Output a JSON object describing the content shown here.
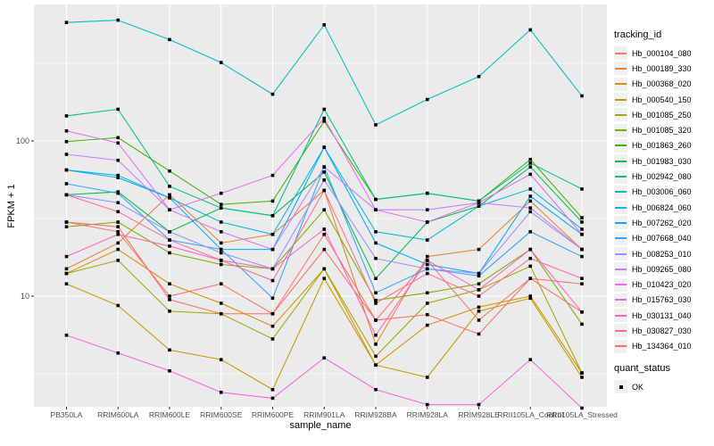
{
  "figure": {
    "x_axis_title": "sample_name",
    "y_axis_title": "FPKM + 1"
  },
  "legend": {
    "tracking_title": "tracking_id",
    "quant_title": "quant_status",
    "quant_items": [
      {
        "label": "OK",
        "marker": "black-square"
      }
    ]
  },
  "colors": {
    "panel_bg": "#EBEBEB",
    "grid": "#FFFFFF",
    "tick_label": "#4D4D4D",
    "tick_mark": "#333333",
    "axis_title": "#000000",
    "point": "#000000",
    "legend_key_bg": "#F0F0F0",
    "page_bg": "#FFFFFF"
  },
  "chart_data": {
    "type": "line",
    "x_type": "categorical",
    "y_scale": "log10",
    "title": "",
    "xlabel": "sample_name",
    "ylabel": "FPKM + 1",
    "grid": true,
    "legend_position": "right",
    "point_marker": "black-square",
    "y_ticks": [
      100,
      10
    ],
    "y_tick_labels": [
      "100",
      "10"
    ],
    "y_minor_gridlines": [
      316.2,
      31.62,
      3.162
    ],
    "ylim": [
      1.9,
      760
    ],
    "categories": [
      "PB350LA",
      "RRIM600LA",
      "RRIM600LE",
      "RRIM600SE",
      "RRIM600PE",
      "RRIM901LA",
      "RRIM928BA",
      "RRIM928LA",
      "RRIM928LE",
      "RRII105LA_Control",
      "RRII105LA_Stressed"
    ],
    "series": [
      {
        "name": "Hb_000104_080",
        "color": "#F8766D",
        "values": [
          30,
          26,
          10,
          12,
          7.7,
          25,
          7,
          17,
          7,
          13,
          12
        ]
      },
      {
        "name": "Hb_000189_330",
        "color": "#EA8331",
        "values": [
          15,
          22,
          45,
          22,
          25,
          48,
          4.9,
          18,
          20,
          41,
          20
        ]
      },
      {
        "name": "Hb_000368_020",
        "color": "#D89000",
        "values": [
          14,
          20,
          12,
          9,
          6.4,
          15,
          3.6,
          6.5,
          8.5,
          10,
          3.2
        ]
      },
      {
        "name": "Hb_000540_150",
        "color": "#C09B00",
        "values": [
          12,
          8.7,
          4.5,
          3.9,
          2.5,
          13,
          3.6,
          3,
          8,
          9.7,
          3
        ]
      },
      {
        "name": "Hb_001085_250",
        "color": "#A3A500",
        "values": [
          14,
          17,
          8,
          7.7,
          5.3,
          15,
          4.1,
          9,
          11,
          15.6,
          3.2
        ]
      },
      {
        "name": "Hb_001085_320",
        "color": "#7CAE00",
        "values": [
          28,
          30,
          19,
          16,
          15,
          36,
          9.4,
          10.5,
          12,
          20,
          6.6
        ]
      },
      {
        "name": "Hb_001863_260",
        "color": "#39B600",
        "values": [
          99,
          105,
          64,
          39,
          41,
          134,
          42,
          46,
          41,
          76,
          32
        ]
      },
      {
        "name": "Hb_001983_030",
        "color": "#00BB4E",
        "values": [
          45,
          47,
          26,
          37,
          33,
          63,
          13,
          30,
          38,
          68,
          30
        ]
      },
      {
        "name": "Hb_002942_080",
        "color": "#00C087",
        "values": [
          145,
          160,
          51,
          37,
          33,
          160,
          42,
          46,
          41,
          72,
          49
        ]
      },
      {
        "name": "Hb_003006_060",
        "color": "#00C0B8",
        "values": [
          580,
          600,
          450,
          320,
          200,
          560,
          127,
          185,
          260,
          520,
          195
        ]
      },
      {
        "name": "Hb_006824_060",
        "color": "#00BAE0",
        "values": [
          65,
          60,
          43,
          30,
          25,
          91,
          26,
          23,
          38,
          49,
          27
        ]
      },
      {
        "name": "Hb_007262_020",
        "color": "#00ACFC",
        "values": [
          65,
          58,
          43,
          20,
          20,
          91,
          22,
          16,
          14,
          44,
          25
        ]
      },
      {
        "name": "Hb_007668_040",
        "color": "#35A2FF",
        "values": [
          53,
          46,
          23,
          20,
          9.7,
          68,
          10.5,
          15,
          13.5,
          26,
          18
        ]
      },
      {
        "name": "Hb_008253_010",
        "color": "#9590FF",
        "values": [
          45,
          40,
          26,
          19,
          15,
          56,
          17.5,
          15,
          14,
          35,
          20
        ]
      },
      {
        "name": "Hb_009265_080",
        "color": "#C77CFF",
        "values": [
          82,
          75,
          36,
          26,
          20,
          68,
          36,
          36,
          40,
          37,
          20
        ]
      },
      {
        "name": "Hb_010423_020",
        "color": "#E76BF3",
        "values": [
          116,
          97,
          36,
          46,
          60,
          140,
          36,
          30,
          40,
          61,
          25
        ]
      },
      {
        "name": "Hb_015763_030",
        "color": "#FA62DB",
        "values": [
          5.6,
          4.3,
          3.3,
          2.4,
          2.2,
          4,
          2.5,
          2,
          2,
          3.9,
          1.9
        ]
      },
      {
        "name": "Hb_030131_040",
        "color": "#FF62BC",
        "values": [
          18,
          25,
          21,
          17,
          15,
          27,
          5.6,
          17,
          11,
          20,
          7.9
        ]
      },
      {
        "name": "Hb_030827_030",
        "color": "#FF6A98",
        "values": [
          45,
          35,
          23,
          17,
          12.6,
          48,
          9,
          14,
          10,
          17.5,
          13
        ]
      },
      {
        "name": "Hb_134364_010",
        "color": "#FF6C67",
        "values": [
          30,
          28,
          9.5,
          7.7,
          7.7,
          20,
          7,
          7.6,
          5.7,
          13,
          7.9
        ]
      }
    ]
  }
}
